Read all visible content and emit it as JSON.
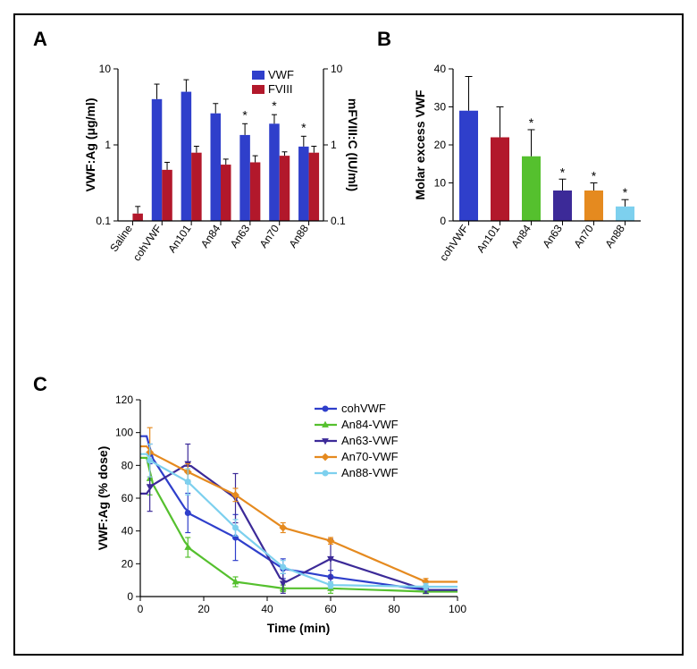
{
  "figure": {
    "border_color": "#000000",
    "border_width": 2.5,
    "background_color": "#ffffff"
  },
  "panelA": {
    "label": "A",
    "type": "bar",
    "categories": [
      "Saline",
      "cohVWF",
      "An101",
      "An84",
      "An63",
      "An70",
      "An88"
    ],
    "series": [
      {
        "name": "VWF",
        "color": "#2f3fcb",
        "values": [
          null,
          4.0,
          5.0,
          2.6,
          1.35,
          1.9,
          0.95
        ],
        "errors": [
          null,
          2.3,
          2.2,
          0.9,
          0.55,
          0.6,
          0.35
        ]
      },
      {
        "name": "FVIII",
        "color": "#b2182b",
        "values": [
          0.125,
          0.47,
          0.79,
          0.55,
          0.59,
          0.72,
          0.79
        ],
        "errors": [
          0.03,
          0.12,
          0.17,
          0.1,
          0.13,
          0.09,
          0.17
        ]
      }
    ],
    "significance_on": [
      "An63",
      "An70",
      "An88"
    ],
    "y_left_label": "VWF:Ag (μg/ml)",
    "y_right_label": "mFVIII:C (IU/ml)",
    "y_scale": "log",
    "y_ticks": [
      0.1,
      1,
      10
    ],
    "y_tick_labels_left": [
      "0.1",
      "1",
      "10"
    ],
    "y_tick_labels_right": [
      "0.1",
      "1",
      "10"
    ],
    "bar_width": 0.35,
    "font_size_tick": 12,
    "font_size_label": 14,
    "legend_entries": [
      {
        "label": "VWF",
        "swatch": "#2f3fcb"
      },
      {
        "label": "FVIII",
        "swatch": "#b2182b"
      }
    ]
  },
  "panelB": {
    "label": "B",
    "type": "bar",
    "categories": [
      "cohVWF",
      "An101",
      "An84",
      "An63",
      "An70",
      "An88"
    ],
    "values": [
      29,
      22,
      17,
      8,
      8,
      3.8
    ],
    "errors": [
      9,
      8,
      7,
      3,
      2,
      1.8
    ],
    "significance_on": [
      "An84",
      "An63",
      "An70",
      "An88"
    ],
    "colors": [
      "#2f3fcb",
      "#b2182b",
      "#55c02e",
      "#3c2a98",
      "#e58a1f",
      "#7dd0ee"
    ],
    "y_label": "Molar excess VWF",
    "y_scale": "linear",
    "ylim": [
      0,
      40
    ],
    "ytick_step": 10,
    "font_size_tick": 12,
    "font_size_label": 14
  },
  "panelC": {
    "label": "C",
    "type": "line",
    "x_label": "Time (min)",
    "y_label": "VWF:Ag (% dose)",
    "xlim": [
      0,
      100
    ],
    "ylim": [
      0,
      120
    ],
    "xtick_step": 20,
    "ytick_step": 20,
    "font_size_tick": 12,
    "font_size_label": 14,
    "line_width": 2.2,
    "marker_size": 7,
    "series": [
      {
        "name": "cohVWF",
        "color": "#2f3fcb",
        "marker": "circle",
        "x": [
          3,
          15,
          30,
          45,
          60,
          90
        ],
        "y": [
          87,
          51,
          36,
          17,
          12,
          4
        ],
        "err": [
          6,
          12,
          14,
          6,
          4,
          2
        ]
      },
      {
        "name": "An84-VWF",
        "color": "#55c02e",
        "marker": "triangle",
        "x": [
          3,
          15,
          30,
          45,
          60,
          90
        ],
        "y": [
          72,
          30,
          9,
          5,
          5,
          3
        ],
        "err": [
          10,
          6,
          3,
          2,
          3,
          1
        ]
      },
      {
        "name": "An63-VWF",
        "color": "#3c2a98",
        "marker": "triangle-down",
        "x": [
          3,
          15,
          30,
          45,
          60,
          90
        ],
        "y": [
          67,
          81,
          60,
          8,
          23,
          4
        ],
        "err": [
          15,
          12,
          15,
          6,
          12,
          2
        ]
      },
      {
        "name": "An70-VWF",
        "color": "#e58a1f",
        "marker": "diamond",
        "x": [
          3,
          15,
          30,
          45,
          60,
          90
        ],
        "y": [
          88,
          76,
          62,
          42,
          34,
          9
        ],
        "err": [
          15,
          5,
          4,
          3,
          2,
          2
        ]
      },
      {
        "name": "An88-VWF",
        "color": "#7dd0ee",
        "marker": "circle",
        "x": [
          3,
          15,
          30,
          45,
          60,
          90
        ],
        "y": [
          83,
          70,
          42,
          18,
          7,
          6
        ],
        "err": [
          10,
          8,
          5,
          4,
          2,
          2
        ]
      }
    ]
  }
}
